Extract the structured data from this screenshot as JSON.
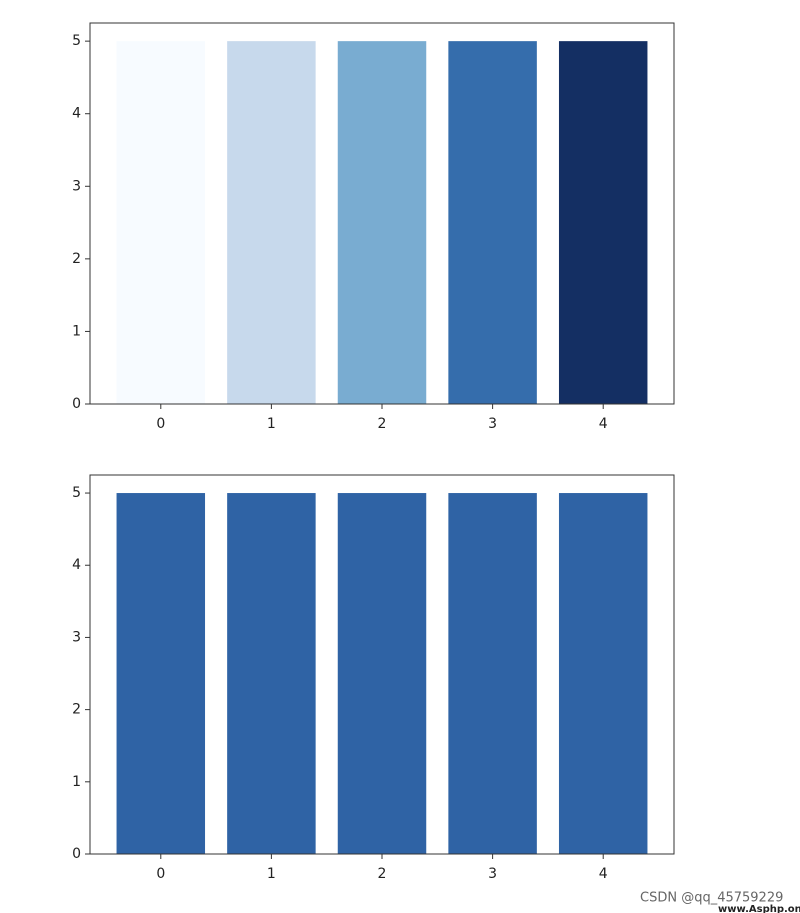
{
  "chart_data": [
    {
      "type": "bar",
      "x": [
        0,
        1,
        2,
        3,
        4
      ],
      "values": [
        5,
        5,
        5,
        5,
        5
      ],
      "colors": [
        "#f7fbff",
        "#c7d9ec",
        "#79acd1",
        "#356dac",
        "#142f63"
      ],
      "xlim": [
        -0.64,
        4.64
      ],
      "ylim": [
        0,
        5.25
      ],
      "xticks": [
        0,
        1,
        2,
        3,
        4
      ],
      "yticks": [
        0,
        1,
        2,
        3,
        4,
        5
      ]
    },
    {
      "type": "bar",
      "x": [
        0,
        1,
        2,
        3,
        4
      ],
      "values": [
        5,
        5,
        5,
        5,
        5
      ],
      "color": "#2f63a5",
      "xlim": [
        -0.64,
        4.64
      ],
      "ylim": [
        0,
        5.25
      ],
      "xticks": [
        0,
        1,
        2,
        3,
        4
      ],
      "yticks": [
        0,
        1,
        2,
        3,
        4,
        5
      ]
    }
  ],
  "watermark": {
    "source": "CSDN @qq_45759229",
    "site": "www.Asphp.online"
  }
}
